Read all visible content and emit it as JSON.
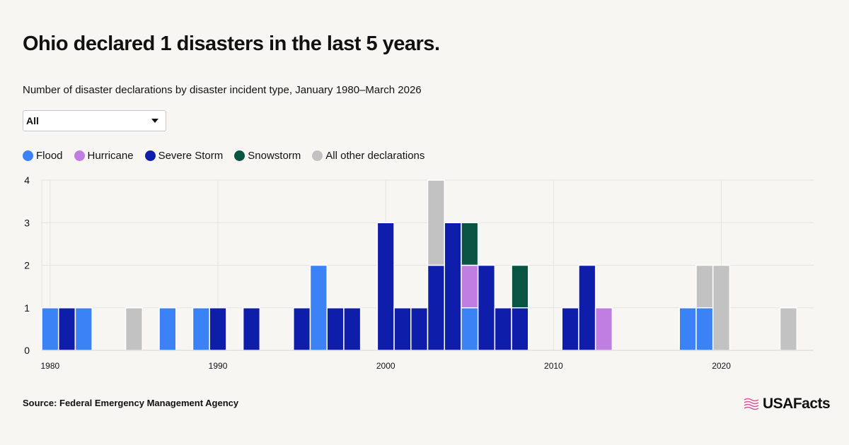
{
  "header": {
    "title": "Ohio declared 1 disasters in the last 5 years.",
    "subtitle": "Number of disaster declarations by disaster incident type, January 1980–March 2026"
  },
  "filter": {
    "selected": "All"
  },
  "footer": {
    "source": "Source: Federal Emergency Management Agency",
    "brand": "USAFacts"
  },
  "colors": {
    "Flood": "#3b82f6",
    "Hurricane": "#c07ee0",
    "Severe Storm": "#0f1eaa",
    "Snowstorm": "#0a5444",
    "All other declarations": "#c2c2c2"
  },
  "chart_data": {
    "type": "bar",
    "stacked": true,
    "x_ticks": [
      1980,
      1990,
      2000,
      2010,
      2020
    ],
    "ylim": [
      0,
      4
    ],
    "y_ticks": [
      0,
      1,
      2,
      3,
      4
    ],
    "legend": [
      "Flood",
      "Hurricane",
      "Severe Storm",
      "Snowstorm",
      "All other declarations"
    ],
    "categories": [
      1980,
      1981,
      1982,
      1985,
      1987,
      1989,
      1990,
      1992,
      1995,
      1996,
      1997,
      1998,
      2000,
      2001,
      2002,
      2003,
      2004,
      2005,
      2006,
      2007,
      2008,
      2011,
      2012,
      2013,
      2018,
      2019,
      2020,
      2024
    ],
    "series": [
      {
        "name": "Flood",
        "values": [
          1,
          0,
          1,
          0,
          1,
          1,
          0,
          0,
          0,
          2,
          0,
          0,
          0,
          0,
          0,
          0,
          0,
          1,
          0,
          0,
          0,
          0,
          0,
          0,
          1,
          1,
          0,
          0
        ]
      },
      {
        "name": "Hurricane",
        "values": [
          0,
          0,
          0,
          0,
          0,
          0,
          0,
          0,
          0,
          0,
          0,
          0,
          0,
          0,
          0,
          0,
          0,
          1,
          0,
          0,
          0,
          0,
          0,
          1,
          0,
          0,
          0,
          0
        ]
      },
      {
        "name": "Severe Storm",
        "values": [
          0,
          1,
          0,
          0,
          0,
          0,
          1,
          1,
          1,
          0,
          1,
          1,
          3,
          1,
          1,
          2,
          3,
          0,
          2,
          1,
          1,
          1,
          2,
          0,
          0,
          0,
          0,
          0
        ]
      },
      {
        "name": "Snowstorm",
        "values": [
          0,
          0,
          0,
          0,
          0,
          0,
          0,
          0,
          0,
          0,
          0,
          0,
          0,
          0,
          0,
          0,
          0,
          1,
          0,
          0,
          1,
          0,
          0,
          0,
          0,
          0,
          0,
          0
        ]
      },
      {
        "name": "All other declarations",
        "values": [
          0,
          0,
          0,
          1,
          0,
          0,
          0,
          0,
          0,
          0,
          0,
          0,
          0,
          0,
          0,
          2,
          0,
          0,
          0,
          0,
          0,
          0,
          0,
          0,
          0,
          1,
          2,
          1
        ]
      }
    ],
    "grid": true
  }
}
